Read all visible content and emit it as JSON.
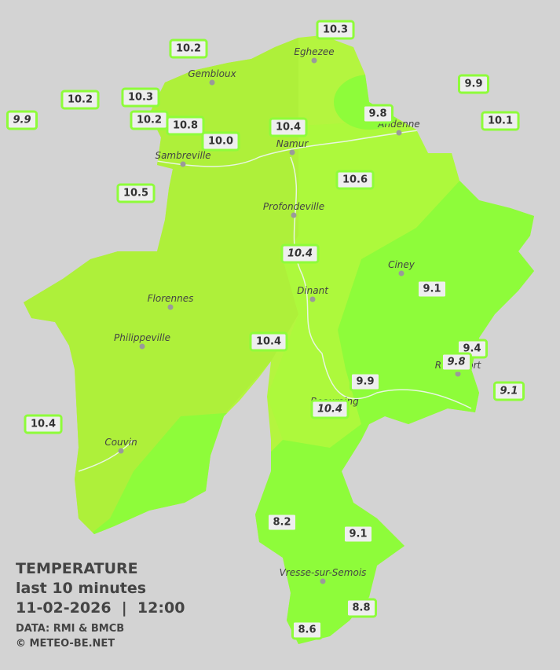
{
  "title": {
    "line1": "TEMPERATURE",
    "line2": "last 10 minutes",
    "line3": "11-02-2026  |  12:00",
    "source": "DATA: RMI & BMCB",
    "credit": "© METEO-BE.NET"
  },
  "towns": [
    "Eghezee",
    "Gembloux",
    "Andenne",
    "Namur",
    "Sambreville",
    "Profondeville",
    "Ciney",
    "Dinant",
    "Florennes",
    "Philippeville",
    "Rochefort",
    "Beauraing",
    "Couvin",
    "Vresse-sur-Semois"
  ],
  "stations": [
    {
      "label": "10.3",
      "italic": false
    },
    {
      "label": "10.2",
      "italic": false
    },
    {
      "label": "9.9",
      "italic": false
    },
    {
      "label": "10.2",
      "italic": false
    },
    {
      "label": "10.3",
      "italic": false
    },
    {
      "label": "9.8",
      "italic": false
    },
    {
      "label": "9.9",
      "italic": true
    },
    {
      "label": "10.1",
      "italic": false
    },
    {
      "label": "10.2",
      "italic": false
    },
    {
      "label": "10.8",
      "italic": false
    },
    {
      "label": "10.4",
      "italic": false
    },
    {
      "label": "10.0",
      "italic": false
    },
    {
      "label": "10.6",
      "italic": false
    },
    {
      "label": "10.5",
      "italic": false
    },
    {
      "label": "10.4",
      "italic": true
    },
    {
      "label": "9.1",
      "italic": false
    },
    {
      "label": "10.4",
      "italic": false
    },
    {
      "label": "9.4",
      "italic": false
    },
    {
      "label": "9.8",
      "italic": true
    },
    {
      "label": "9.9",
      "italic": false
    },
    {
      "label": "9.1",
      "italic": true
    },
    {
      "label": "10.4",
      "italic": true
    },
    {
      "label": "10.4",
      "italic": false
    },
    {
      "label": "8.2",
      "italic": false
    },
    {
      "label": "9.1",
      "italic": false
    },
    {
      "label": "8.8",
      "italic": false
    },
    {
      "label": "8.6",
      "italic": false
    }
  ]
}
